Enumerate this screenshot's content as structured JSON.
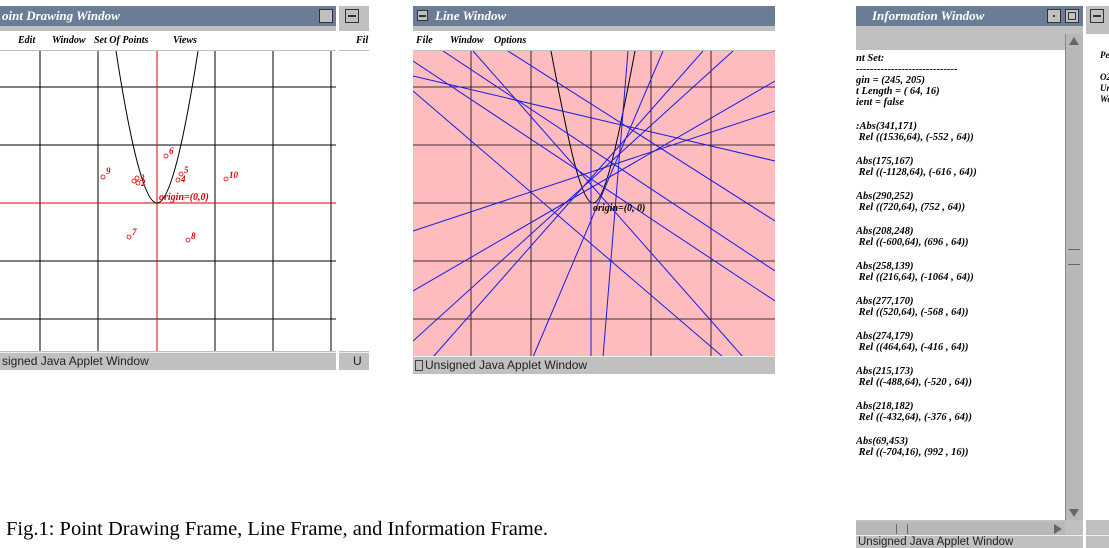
{
  "caption": "Fig.1: Point Drawing Frame,  Line Frame, and  Information Frame.",
  "point_window": {
    "title": "oint Drawing Window",
    "menu": [
      "Edit",
      "Window",
      "Set Of Points",
      "Views"
    ],
    "status": "signed Java Applet Window",
    "origin_label": "origin=(0,0)",
    "point_labels": [
      "6",
      "9",
      "3",
      "2",
      "5",
      "4",
      "10",
      "7",
      "8"
    ],
    "axis_color": "#e00000",
    "point_color": "#e00000"
  },
  "side_window_a": {
    "menu_fragment": "Fil",
    "status_fragment": "U"
  },
  "line_window": {
    "title": "Line Window",
    "menu": [
      "File",
      "Window",
      "Options"
    ],
    "status": "Unsigned Java Applet Window",
    "origin_label": "origin=(0, 0)",
    "background_color": "#ffbcbf",
    "line_color": "#1a1ae6"
  },
  "info_window": {
    "title": "Information Window",
    "status": "Unsigned Java Applet Window",
    "header_lines": [
      "nt Set:",
      "-----------------------------",
      "gin = (245, 205)",
      "t Length = ( 64, 16)",
      "ient = false"
    ],
    "points": [
      {
        "abs": ":Abs(341,171)",
        "rel": " Rel ((1536,64), (-552 , 64))"
      },
      {
        "abs": "Abs(175,167)",
        "rel": " Rel ((-1128,64), (-616 , 64))"
      },
      {
        "abs": "Abs(290,252)",
        "rel": " Rel ((720,64), (752 , 64))"
      },
      {
        "abs": "Abs(208,248)",
        "rel": " Rel ((-600,64), (696 , 64))"
      },
      {
        "abs": "Abs(258,139)",
        "rel": " Rel ((216,64), (-1064 , 64))"
      },
      {
        "abs": "Abs(277,170)",
        "rel": " Rel ((520,64), (-568 , 64))"
      },
      {
        "abs": "Abs(274,179)",
        "rel": " Rel ((464,64), (-416 , 64))"
      },
      {
        "abs": "Abs(215,173)",
        "rel": " Rel ((-488,64), (-520 , 64))"
      },
      {
        "abs": "Abs(218,182)",
        "rel": " Rel ((-432,64), (-376 , 64))"
      },
      {
        "abs": "Abs(69,453)",
        "rel": " Rel ((-704,16), (992 , 16))"
      }
    ]
  },
  "side_window_b": {
    "lines": [
      "Pe",
      "",
      "O2",
      "Ur",
      "Wo"
    ]
  }
}
